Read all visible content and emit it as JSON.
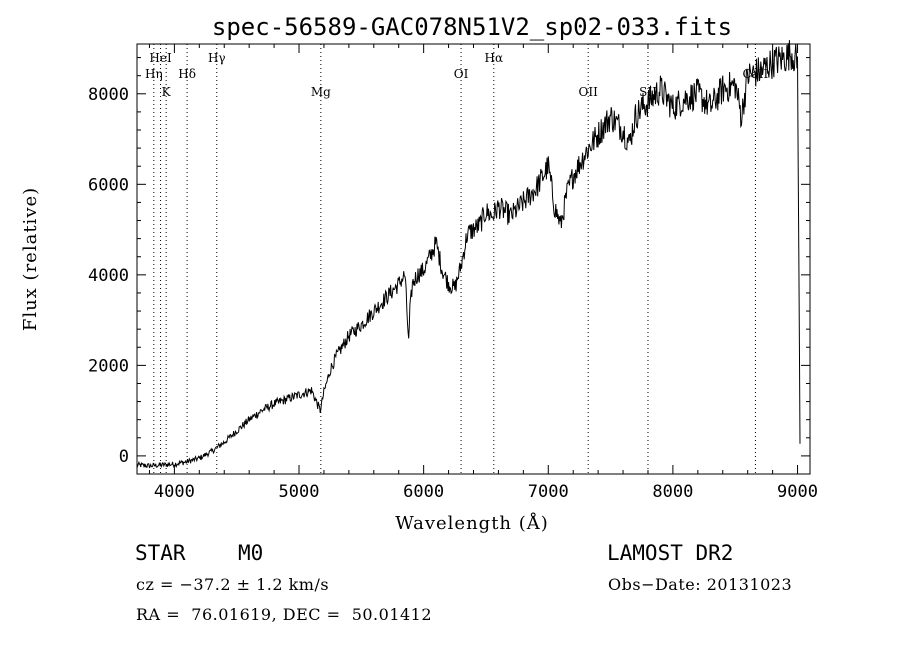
{
  "chart_data": {
    "type": "line",
    "title": "spec-56589-GAC078N51V2_sp02-033.fits",
    "xlabel": "Wavelength (Å)",
    "ylabel": "Flux (relative)",
    "xlim": [
      3700,
      9100
    ],
    "ylim": [
      -400,
      9100
    ],
    "xticks": [
      4000,
      5000,
      6000,
      7000,
      8000,
      9000
    ],
    "yticks": [
      0,
      2000,
      4000,
      6000,
      8000
    ],
    "grid": false,
    "series": [
      {
        "x": [
          3700,
          3800,
          3900,
          4000,
          4100,
          4200,
          4300,
          4400,
          4500,
          4600,
          4700,
          4800,
          4900,
          5000,
          5100,
          5170,
          5200,
          5250,
          5300,
          5400,
          5500,
          5600,
          5700,
          5800,
          5850,
          5880,
          5890,
          5910,
          5950,
          6000,
          6050,
          6100,
          6150,
          6200,
          6250,
          6300,
          6350,
          6400,
          6450,
          6500,
          6550,
          6600,
          6700,
          6800,
          6900,
          7000,
          7050,
          7100,
          7150,
          7200,
          7300,
          7400,
          7500,
          7600,
          7650,
          7700,
          7750,
          7800,
          7900,
          8000,
          8100,
          8200,
          8300,
          8400,
          8500,
          8550,
          8600,
          8700,
          8800,
          8900,
          8950,
          9000,
          9020
        ],
        "y": [
          -200,
          -220,
          -200,
          -180,
          -130,
          -50,
          100,
          300,
          550,
          800,
          1000,
          1150,
          1250,
          1350,
          1450,
          1000,
          1400,
          1900,
          2200,
          2650,
          2900,
          3200,
          3500,
          3800,
          4000,
          2500,
          3200,
          3800,
          4000,
          4100,
          4400,
          4700,
          4100,
          3800,
          3700,
          4200,
          4900,
          5000,
          5100,
          5400,
          5300,
          5500,
          5300,
          5600,
          5900,
          6400,
          5500,
          5100,
          5800,
          6200,
          6700,
          7100,
          7500,
          7200,
          6900,
          7500,
          7700,
          7800,
          8100,
          7700,
          7900,
          8000,
          7700,
          8100,
          8200,
          7500,
          8400,
          8500,
          8700,
          8800,
          8900,
          8700,
          300
        ],
        "stroke": "#000000"
      }
    ],
    "annotations": [
      {
        "label": "HeI",
        "x": 3889,
        "row": "top"
      },
      {
        "label": "Hγ",
        "x": 4340,
        "row": "top"
      },
      {
        "label": "Hα",
        "x": 6563,
        "row": "top"
      },
      {
        "label": "Hη",
        "x": 3835,
        "row": "mid"
      },
      {
        "label": "Hδ",
        "x": 4102,
        "row": "mid"
      },
      {
        "label": "OI",
        "x": 6300,
        "row": "mid"
      },
      {
        "label": "CaII",
        "x": 8662,
        "row": "mid"
      },
      {
        "label": "K",
        "x": 3934,
        "row": "low"
      },
      {
        "label": "Mg",
        "x": 5175,
        "row": "low"
      },
      {
        "label": "OII",
        "x": 7320,
        "row": "low"
      },
      {
        "label": "SII",
        "x": 7800,
        "row": "low"
      }
    ]
  },
  "info": {
    "object_type": "STAR",
    "subclass": "M0",
    "survey": "LAMOST DR2",
    "cz": "cz = −37.2 ± 1.2 km/s",
    "obs_date": "Obs−Date: 20131023",
    "radec": "RA =  76.01619, DEC =  50.01412"
  }
}
